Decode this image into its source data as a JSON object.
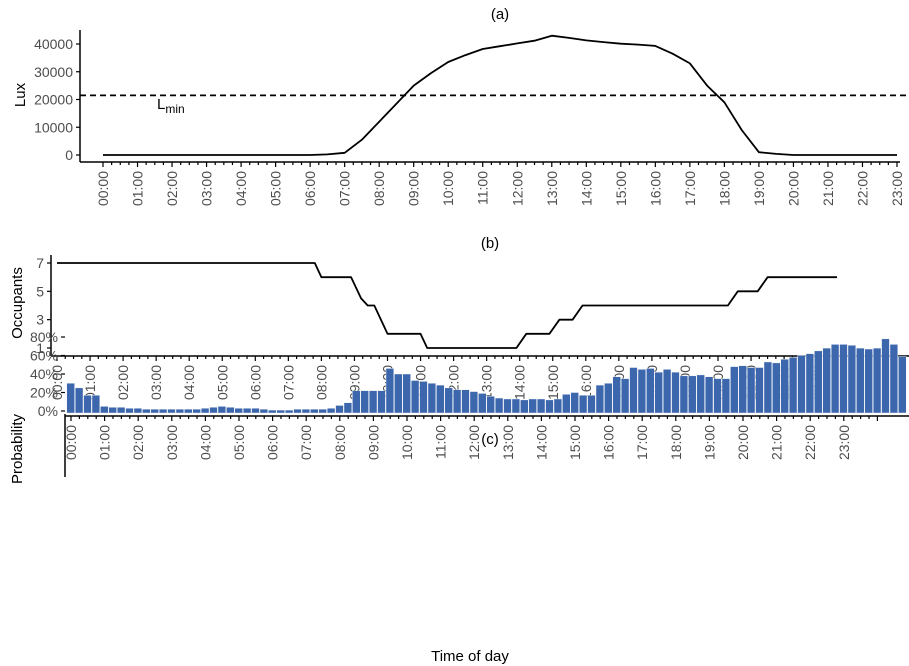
{
  "x_axis_label": "Time of day",
  "hour_labels": [
    "00:00",
    "01:00",
    "02:00",
    "03:00",
    "04:00",
    "05:00",
    "06:00",
    "07:00",
    "08:00",
    "09:00",
    "10:00",
    "11:00",
    "12:00",
    "13:00",
    "14:00",
    "15:00",
    "16:00",
    "17:00",
    "18:00",
    "19:00",
    "20:00",
    "21:00",
    "22:00",
    "23:00"
  ],
  "chart_data": [
    {
      "panel": "(a)",
      "type": "line",
      "title": "(a)",
      "ylabel": "Lux",
      "yticks": [
        0,
        10000,
        20000,
        30000,
        40000
      ],
      "ytick_labels": [
        "0",
        "10000",
        "20000",
        "30000",
        "40000"
      ],
      "ylim": [
        -1500,
        46000
      ],
      "x_hours": [
        0,
        1,
        2,
        3,
        4,
        5,
        6,
        6.5,
        7,
        7.5,
        8,
        8.5,
        9,
        9.5,
        10,
        10.5,
        11,
        11.5,
        12,
        12.5,
        13,
        13.5,
        14,
        14.5,
        15,
        15.5,
        16,
        16.5,
        17,
        17.5,
        18,
        18.5,
        19,
        19.5,
        20,
        21,
        22,
        23
      ],
      "values": [
        0,
        0,
        0,
        0,
        0,
        0,
        0,
        200,
        800,
        5500,
        12000,
        18500,
        25000,
        29500,
        33500,
        36000,
        38200,
        39200,
        40200,
        41200,
        43000,
        42200,
        41300,
        40700,
        40100,
        39800,
        39300,
        36500,
        33000,
        25000,
        19000,
        9000,
        1000,
        400,
        0,
        0,
        0,
        0
      ],
      "reference_line": {
        "label": "L",
        "label_sub": "min",
        "value": 21500
      }
    },
    {
      "panel": "(b)",
      "type": "line",
      "title": "(b)",
      "ylabel": "Occupants",
      "yticks": [
        1,
        3,
        5,
        7
      ],
      "ytick_labels": [
        "1",
        "3",
        "5",
        "7"
      ],
      "ylim": [
        0.5,
        7.7
      ],
      "x_hours": [
        0,
        7.8,
        8,
        8.9,
        9.2,
        9.4,
        9.6,
        10,
        11,
        11.2,
        13.9,
        14.2,
        14.9,
        15.2,
        15.6,
        15.9,
        16,
        20.3,
        20.6,
        21.2,
        21.5,
        23.6
      ],
      "values": [
        7,
        7,
        6,
        6,
        4.5,
        4,
        4,
        2,
        2,
        1,
        1,
        2,
        2,
        3,
        3,
        4,
        4,
        4,
        5,
        5,
        6,
        6
      ]
    },
    {
      "panel": "(c)",
      "type": "bar",
      "title": "(c)",
      "ylabel": "Probability",
      "yticks": [
        0,
        20,
        40,
        60,
        80
      ],
      "ytick_labels": [
        "0%",
        "20%",
        "40%",
        "60%",
        "80%"
      ],
      "ylim": [
        -2,
        84
      ],
      "bar_width_hours": 0.25,
      "values": [
        30,
        25,
        17,
        17,
        5,
        4,
        4,
        3,
        3,
        2,
        2,
        2,
        2,
        2,
        2,
        2,
        3,
        4,
        5,
        4,
        3,
        3,
        3,
        2,
        1,
        1,
        1,
        2,
        2,
        2,
        2,
        3,
        6,
        9,
        22,
        22,
        22,
        22,
        46,
        40,
        40,
        33,
        32,
        30,
        28,
        25,
        23,
        23,
        21,
        19,
        16,
        14,
        13,
        13,
        12,
        13,
        13,
        12,
        13,
        18,
        20,
        17,
        17,
        28,
        30,
        37,
        35,
        47,
        45,
        46,
        42,
        45,
        42,
        38,
        38,
        39,
        37,
        35,
        35,
        48,
        49,
        47,
        47,
        53,
        52,
        56,
        58,
        60,
        62,
        65,
        68,
        72,
        72,
        71,
        68,
        67,
        68,
        78,
        72,
        59
      ]
    }
  ]
}
